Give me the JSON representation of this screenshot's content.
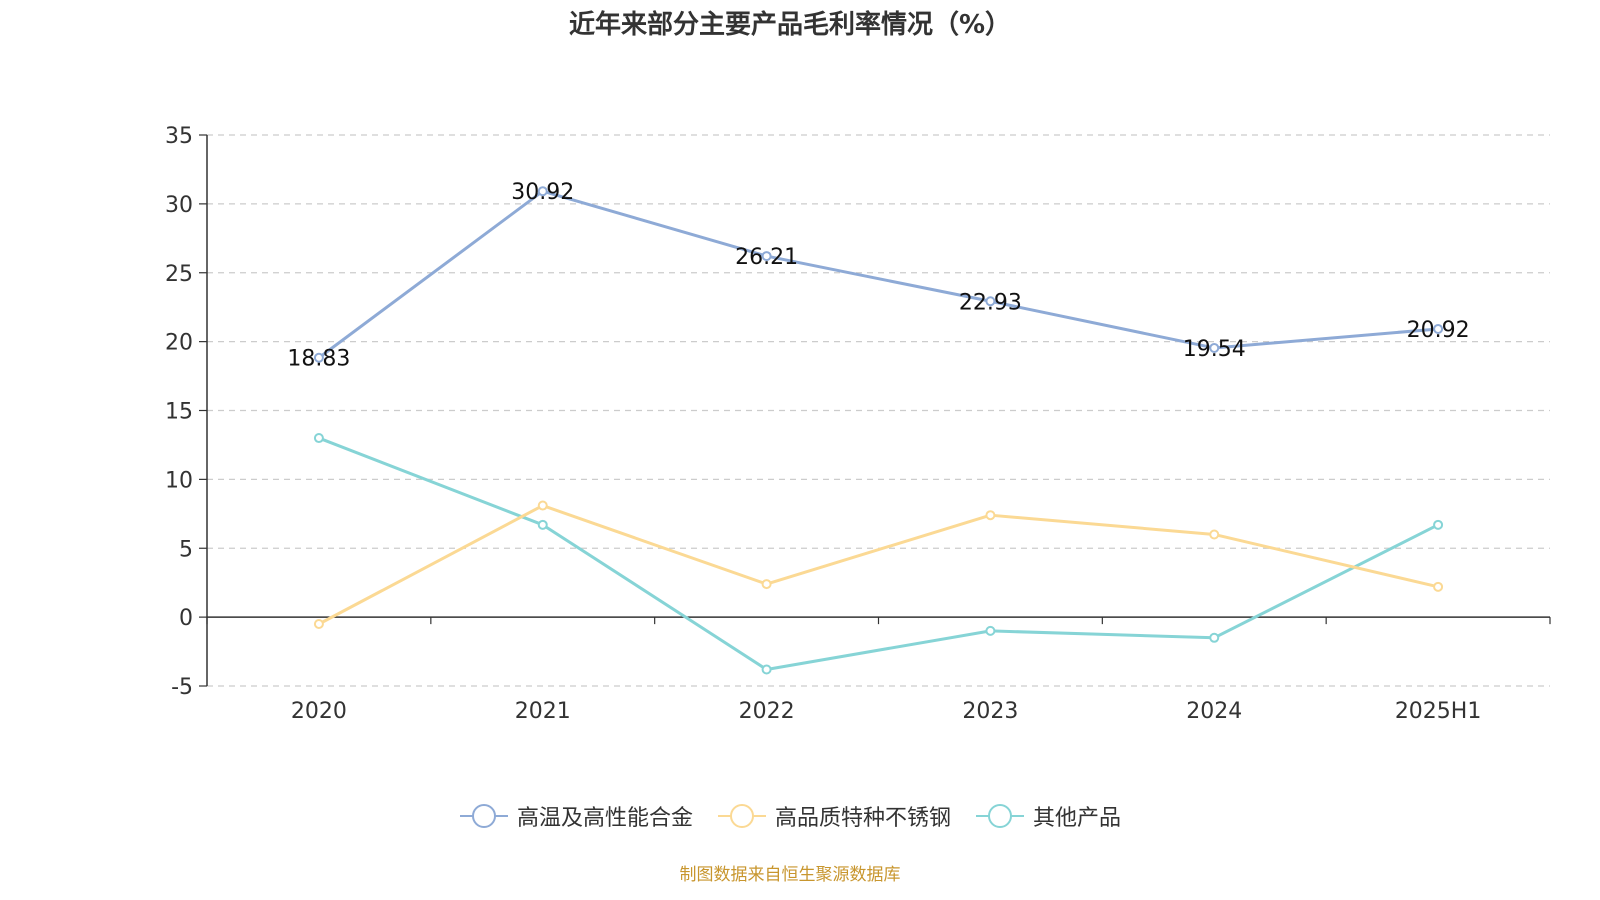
{
  "chart_data": {
    "type": "line",
    "title": "近年来部分主要产品毛利率情况（%）",
    "categories": [
      "2020",
      "2021",
      "2022",
      "2023",
      "2024",
      "2025H1"
    ],
    "ylim": [
      -5,
      35
    ],
    "yticks": [
      35,
      30,
      25,
      20,
      15,
      10,
      5,
      0,
      -5
    ],
    "grid": true,
    "legend_position": "bottom",
    "series": [
      {
        "name": "高温及高性能合金",
        "color": "#8eaad6",
        "values": [
          18.83,
          30.92,
          26.21,
          22.93,
          19.54,
          20.92
        ],
        "labels": [
          "18.83",
          "30.92",
          "26.21",
          "22.93",
          "19.54",
          "20.92"
        ]
      },
      {
        "name": "高品质特种不锈钢",
        "color": "#fbd994",
        "values": [
          -0.5,
          8.1,
          2.4,
          7.4,
          6.0,
          2.2
        ]
      },
      {
        "name": "其他产品",
        "color": "#86d4d6",
        "values": [
          13.0,
          6.7,
          -3.8,
          -1.0,
          -1.5,
          6.7
        ]
      }
    ]
  },
  "footer": {
    "source": "制图数据来自恒生聚源数据库"
  }
}
